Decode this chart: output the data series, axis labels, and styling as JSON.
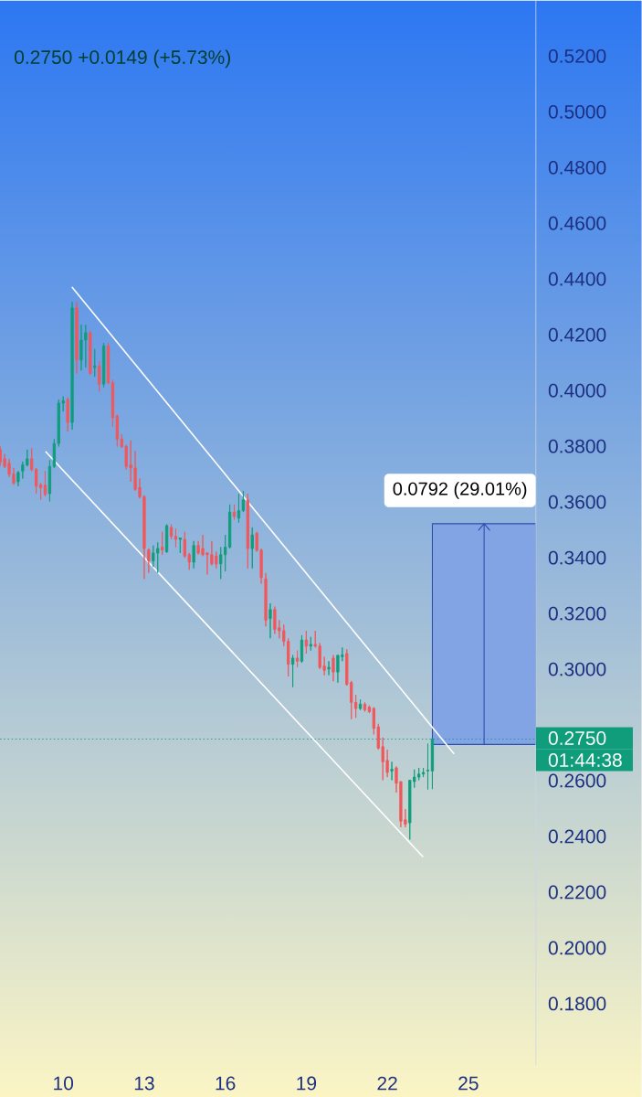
{
  "chart_data": {
    "type": "candlestick",
    "subtitle": "0.2750  +0.0149 (+5.73%)",
    "x": [
      7.667,
      7.833,
      8,
      8.167,
      8.333,
      8.5,
      8.667,
      8.833,
      9,
      9.167,
      9.333,
      9.5,
      9.667,
      9.833,
      10,
      10.167,
      10.333,
      10.5,
      10.667,
      10.833,
      11,
      11.167,
      11.333,
      11.5,
      11.667,
      11.833,
      12,
      12.167,
      12.333,
      12.5,
      12.667,
      12.833,
      13,
      13.167,
      13.333,
      13.5,
      13.667,
      13.833,
      14,
      14.167,
      14.333,
      14.5,
      14.667,
      14.833,
      15,
      15.167,
      15.333,
      15.5,
      15.667,
      15.833,
      16,
      16.167,
      16.333,
      16.5,
      16.667,
      16.833,
      17,
      17.167,
      17.333,
      17.5,
      17.667,
      17.833,
      18,
      18.167,
      18.333,
      18.5,
      18.667,
      18.833,
      19,
      19.167,
      19.333,
      19.5,
      19.667,
      19.833,
      20,
      20.167,
      20.333,
      20.5,
      20.667,
      20.833,
      21,
      21.167,
      21.333,
      21.5,
      21.667,
      21.833,
      22,
      22.167,
      22.333,
      22.5,
      22.667,
      22.833,
      23,
      23.167,
      23.333,
      23.5,
      23.667
    ],
    "ohlc": [
      [
        0.3788,
        0.38,
        0.373,
        0.3744
      ],
      [
        0.3755,
        0.3772,
        0.3722,
        0.3728
      ],
      [
        0.3739,
        0.3755,
        0.369,
        0.37
      ],
      [
        0.37,
        0.3722,
        0.3662,
        0.3668
      ],
      [
        0.3673,
        0.3711,
        0.3657,
        0.3706
      ],
      [
        0.3711,
        0.3745,
        0.3684,
        0.3733
      ],
      [
        0.3733,
        0.3788,
        0.3728,
        0.3755
      ],
      [
        0.3755,
        0.3793,
        0.3711,
        0.3717
      ],
      [
        0.3717,
        0.3722,
        0.363,
        0.3657
      ],
      [
        0.3662,
        0.3668,
        0.3608,
        0.3651
      ],
      [
        0.366,
        0.3711,
        0.362,
        0.3627
      ],
      [
        0.363,
        0.375,
        0.3602,
        0.3728
      ],
      [
        0.3728,
        0.3826,
        0.3722,
        0.381
      ],
      [
        0.381,
        0.3968,
        0.3799,
        0.3955
      ],
      [
        0.3955,
        0.3979,
        0.3925,
        0.3963
      ],
      [
        0.3968,
        0.3974,
        0.3853,
        0.3886
      ],
      [
        0.3886,
        0.4318,
        0.386,
        0.4296
      ],
      [
        0.4296,
        0.4318,
        0.4061,
        0.411
      ],
      [
        0.411,
        0.4236,
        0.4072,
        0.4181
      ],
      [
        0.4181,
        0.4236,
        0.4083,
        0.4207
      ],
      [
        0.4207,
        0.4214,
        0.4056,
        0.4061
      ],
      [
        0.4083,
        0.4149,
        0.405,
        0.4088
      ],
      [
        0.4088,
        0.4105,
        0.3996,
        0.4023
      ],
      [
        0.4023,
        0.4171,
        0.4012,
        0.416
      ],
      [
        0.416,
        0.4171,
        0.4023,
        0.4028
      ],
      [
        0.4028,
        0.4039,
        0.387,
        0.3903
      ],
      [
        0.3908,
        0.3914,
        0.3799,
        0.3826
      ],
      [
        0.3826,
        0.3842,
        0.3794,
        0.3799
      ],
      [
        0.3799,
        0.3805,
        0.3717,
        0.3728
      ],
      [
        0.3733,
        0.3821,
        0.3673,
        0.3722
      ],
      [
        0.3722,
        0.3783,
        0.3641,
        0.3646
      ],
      [
        0.3652,
        0.3684,
        0.3613,
        0.3619
      ],
      [
        0.3619,
        0.3624,
        0.3324,
        0.3433
      ],
      [
        0.3428,
        0.3433,
        0.3346,
        0.3389
      ],
      [
        0.3389,
        0.3444,
        0.3367,
        0.3417
      ],
      [
        0.3417,
        0.3455,
        0.3346,
        0.3433
      ],
      [
        0.3438,
        0.3493,
        0.3411,
        0.3428
      ],
      [
        0.3422,
        0.352,
        0.3417,
        0.3515
      ],
      [
        0.3509,
        0.352,
        0.3466,
        0.3477
      ],
      [
        0.3477,
        0.3504,
        0.3438,
        0.3466
      ],
      [
        0.3466,
        0.3471,
        0.3417,
        0.3471
      ],
      [
        0.3466,
        0.3493,
        0.34,
        0.3406
      ],
      [
        0.3411,
        0.3417,
        0.3357,
        0.3384
      ],
      [
        0.3384,
        0.346,
        0.3362,
        0.3444
      ],
      [
        0.3444,
        0.346,
        0.3411,
        0.3417
      ],
      [
        0.3433,
        0.3482,
        0.3406,
        0.3411
      ],
      [
        0.3417,
        0.342,
        0.334,
        0.3411
      ],
      [
        0.3411,
        0.346,
        0.3373,
        0.3378
      ],
      [
        0.3406,
        0.3422,
        0.3362,
        0.3378
      ],
      [
        0.3378,
        0.3438,
        0.3324,
        0.3411
      ],
      [
        0.3411,
        0.3482,
        0.3351,
        0.3438
      ],
      [
        0.3438,
        0.3591,
        0.3433,
        0.3564
      ],
      [
        0.3564,
        0.3591,
        0.3537,
        0.3548
      ],
      [
        0.3542,
        0.363,
        0.3526,
        0.3569
      ],
      [
        0.3569,
        0.364,
        0.3564,
        0.3608
      ],
      [
        0.3608,
        0.363,
        0.3362,
        0.3433
      ],
      [
        0.3433,
        0.3509,
        0.3362,
        0.3482
      ],
      [
        0.3488,
        0.3493,
        0.3422,
        0.3427
      ],
      [
        0.3427,
        0.3433,
        0.3307,
        0.3329
      ],
      [
        0.3324,
        0.3345,
        0.3154,
        0.3176
      ],
      [
        0.3182,
        0.3236,
        0.3111,
        0.3214
      ],
      [
        0.3214,
        0.3225,
        0.3127,
        0.3143
      ],
      [
        0.3149,
        0.3176,
        0.3111,
        0.3138
      ],
      [
        0.3138,
        0.316,
        0.3083,
        0.31
      ],
      [
        0.31,
        0.3111,
        0.2974,
        0.3018
      ],
      [
        0.3018,
        0.3051,
        0.2936,
        0.304
      ],
      [
        0.304,
        0.3067,
        0.3007,
        0.3029
      ],
      [
        0.3029,
        0.3122,
        0.3023,
        0.3105
      ],
      [
        0.3105,
        0.3138,
        0.3056,
        0.3083
      ],
      [
        0.3083,
        0.3116,
        0.3067,
        0.3089
      ],
      [
        0.3089,
        0.3138,
        0.3078,
        0.3083
      ],
      [
        0.3083,
        0.3094,
        0.3001,
        0.3007
      ],
      [
        0.3012,
        0.3045,
        0.2979,
        0.2996
      ],
      [
        0.3001,
        0.3029,
        0.2979,
        0.3007
      ],
      [
        0.304,
        0.3051,
        0.2957,
        0.299
      ],
      [
        0.299,
        0.3051,
        0.2952,
        0.305
      ],
      [
        0.3045,
        0.3078,
        0.3029,
        0.3051
      ],
      [
        0.3056,
        0.3072,
        0.2941,
        0.2946
      ],
      [
        0.2952,
        0.2958,
        0.2821,
        0.2881
      ],
      [
        0.2881,
        0.2908,
        0.2826,
        0.2859
      ],
      [
        0.2859,
        0.2892,
        0.2854,
        0.2875
      ],
      [
        0.2875,
        0.2881,
        0.2848,
        0.2854
      ],
      [
        0.2864,
        0.287,
        0.2843,
        0.2848
      ],
      [
        0.2859,
        0.2864,
        0.2766,
        0.2788
      ],
      [
        0.2793,
        0.2804,
        0.2712,
        0.2717
      ],
      [
        0.2722,
        0.2755,
        0.2602,
        0.2668
      ],
      [
        0.2673,
        0.2711,
        0.2613,
        0.263
      ],
      [
        0.2635,
        0.2668,
        0.2602,
        0.2641
      ],
      [
        0.2646,
        0.2651,
        0.2558,
        0.2591
      ],
      [
        0.2597,
        0.2597,
        0.2433,
        0.2455
      ],
      [
        0.246,
        0.2498,
        0.2433,
        0.2444
      ],
      [
        0.2449,
        0.2602,
        0.2389,
        0.2602
      ],
      [
        0.2597,
        0.264,
        0.2575,
        0.2613
      ],
      [
        0.2613,
        0.2646,
        0.2602,
        0.2624
      ],
      [
        0.2624,
        0.2646,
        0.2613,
        0.263
      ],
      [
        0.2635,
        0.2733,
        0.2569,
        0.2638
      ],
      [
        0.2635,
        0.275,
        0.257,
        0.275
      ]
    ],
    "colors": [
      "#f2575a",
      "#f2575a",
      "#f2575a",
      "#f2575a",
      "#0f9d7c",
      "#0f9d7c",
      "#0f9d7c",
      "#f2575a",
      "#f2575a",
      "#f2575a",
      "#f2575a",
      "#0f9d7c",
      "#0f9d7c",
      "#0f9d7c",
      "#0f9d7c",
      "#f2575a",
      "#0f9d7c",
      "#f2575a",
      "#0f9d7c",
      "#0f9d7c",
      "#f2575a",
      "#0f9d7c",
      "#f2575a",
      "#0f9d7c",
      "#f2575a",
      "#f2575a",
      "#f2575a",
      "#f2575a",
      "#f2575a",
      "#f2575a",
      "#f2575a",
      "#f2575a",
      "#f2575a",
      "#f2575a",
      "#0f9d7c",
      "#0f9d7c",
      "#f2575a",
      "#0f9d7c",
      "#f2575a",
      "#f2575a",
      "#0f9d7c",
      "#f2575a",
      "#f2575a",
      "#0f9d7c",
      "#f2575a",
      "#f2575a",
      "#f2575a",
      "#f2575a",
      "#f2575a",
      "#0f9d7c",
      "#0f9d7c",
      "#0f9d7c",
      "#f2575a",
      "#0f9d7c",
      "#0f9d7c",
      "#f2575a",
      "#0f9d7c",
      "#f2575a",
      "#f2575a",
      "#f2575a",
      "#0f9d7c",
      "#f2575a",
      "#f2575a",
      "#f2575a",
      "#f2575a",
      "#0f9d7c",
      "#f2575a",
      "#0f9d7c",
      "#f2575a",
      "#0f9d7c",
      "#f2575a",
      "#f2575a",
      "#f2575a",
      "#0f9d7c",
      "#f2575a",
      "#0f9d7c",
      "#0f9d7c",
      "#f2575a",
      "#f2575a",
      "#f2575a",
      "#0f9d7c",
      "#f2575a",
      "#f2575a",
      "#f2575a",
      "#f2575a",
      "#f2575a",
      "#f2575a",
      "#0f9d7c",
      "#f2575a",
      "#f2575a",
      "#f2575a",
      "#0f9d7c",
      "#0f9d7c",
      "#0f9d7c",
      "#0f9d7c",
      "#0f9d7c",
      "#0f9d7c"
    ],
    "series": [
      {
        "type": "line",
        "color": "#ffffff",
        "x": [
          10.338,
          24.459
        ],
        "values": [
          0.437,
          0.2698
        ]
      },
      {
        "type": "line",
        "color": "#ffffff",
        "x": [
          9.358,
          23.311
        ],
        "values": [
          0.378,
          0.2328
        ]
      }
    ],
    "xlim": [
      7.66,
      27.5
    ],
    "ylim": [
      0.158,
      0.54
    ],
    "xticks": [
      10,
      13,
      16,
      19,
      22,
      25
    ],
    "yticks": [
      {
        "value": 0.18,
        "label": "0.1800"
      },
      {
        "value": 0.2,
        "label": "0.2000"
      },
      {
        "value": 0.22,
        "label": "0.2200"
      },
      {
        "value": 0.24,
        "label": "0.2400"
      },
      {
        "value": 0.26,
        "label": "0.2600"
      },
      {
        "value": 0.3,
        "label": "0.3000"
      },
      {
        "value": 0.32,
        "label": "0.3200"
      },
      {
        "value": 0.34,
        "label": "0.3400"
      },
      {
        "value": 0.36,
        "label": "0.3600"
      },
      {
        "value": 0.38,
        "label": "0.3800"
      },
      {
        "value": 0.4,
        "label": "0.4000"
      },
      {
        "value": 0.42,
        "label": "0.4200"
      },
      {
        "value": 0.44,
        "label": "0.4400"
      },
      {
        "value": 0.46,
        "label": "0.4600"
      },
      {
        "value": 0.48,
        "label": "0.4800"
      },
      {
        "value": 0.5,
        "label": "0.5000"
      },
      {
        "value": 0.52,
        "label": "0.5200"
      }
    ],
    "ref_lines": [
      {
        "axis": "y",
        "value": 0.275,
        "label": "0.2750",
        "color": "#0f9d7c",
        "line_style": "dotted"
      }
    ],
    "bands": [
      {
        "axis": "y",
        "from": 0.273,
        "to": 0.3522,
        "label": "0.0792 (29.01%)",
        "color": "#82a4e4"
      }
    ],
    "annotations": [
      {
        "text": "01:44:38",
        "x": 27.5,
        "y": 0.275
      }
    ]
  }
}
